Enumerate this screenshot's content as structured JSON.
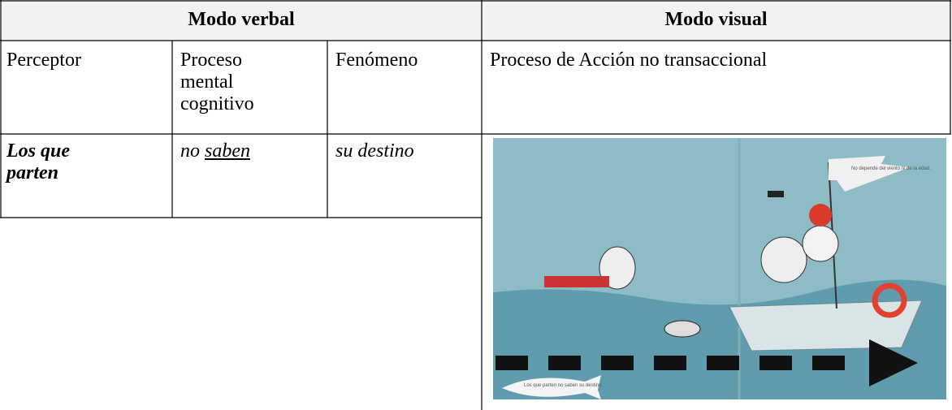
{
  "header": {
    "verbal": "Modo verbal",
    "visual": "Modo visual"
  },
  "table": {
    "rows": [
      [
        "Perceptor",
        "Proceso mental cognitivo",
        "Fenómeno",
        "Proceso de Acción no transaccional"
      ],
      [
        [
          "Los que parten"
        ],
        [
          "no",
          "saben"
        ],
        [
          "su destino"
        ]
      ]
    ]
  },
  "image": {
    "flag_text": "No depende del viento ni de la edad.",
    "fish_text": "Los que parten no saben su destino."
  }
}
